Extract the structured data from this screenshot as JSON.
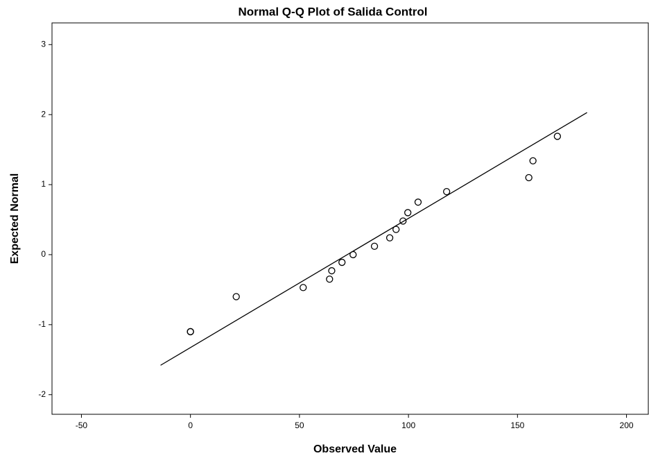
{
  "chart_data": {
    "type": "scatter",
    "title": "Normal Q-Q Plot of Salida Control",
    "x_label": "Observed Value",
    "y_label": "Expected Normal",
    "x": [
      0,
      0,
      21,
      51.7,
      63.8,
      64.8,
      69.5,
      74.6,
      84.4,
      91.4,
      94.3,
      97.5,
      99.7,
      104.4,
      117.5,
      155.2,
      157.1,
      168.3
    ],
    "values": [
      -1.1,
      -1.1,
      -0.6,
      -0.47,
      -0.35,
      -0.23,
      -0.11,
      0,
      0.12,
      0.24,
      0.36,
      0.48,
      0.6,
      0.75,
      0.9,
      1.1,
      1.34,
      1.69
    ],
    "reference_line": {
      "x": [
        -13.7,
        181.9
      ],
      "y": [
        -1.58,
        2.03
      ]
    },
    "xlim": [
      -63.5,
      210
    ],
    "ylim": [
      -2.28,
      3.31
    ],
    "xticks": [
      -50,
      0,
      50,
      100,
      150,
      200
    ],
    "yticks": [
      -2,
      -1,
      0,
      1,
      2,
      3
    ],
    "color": "#000000"
  }
}
